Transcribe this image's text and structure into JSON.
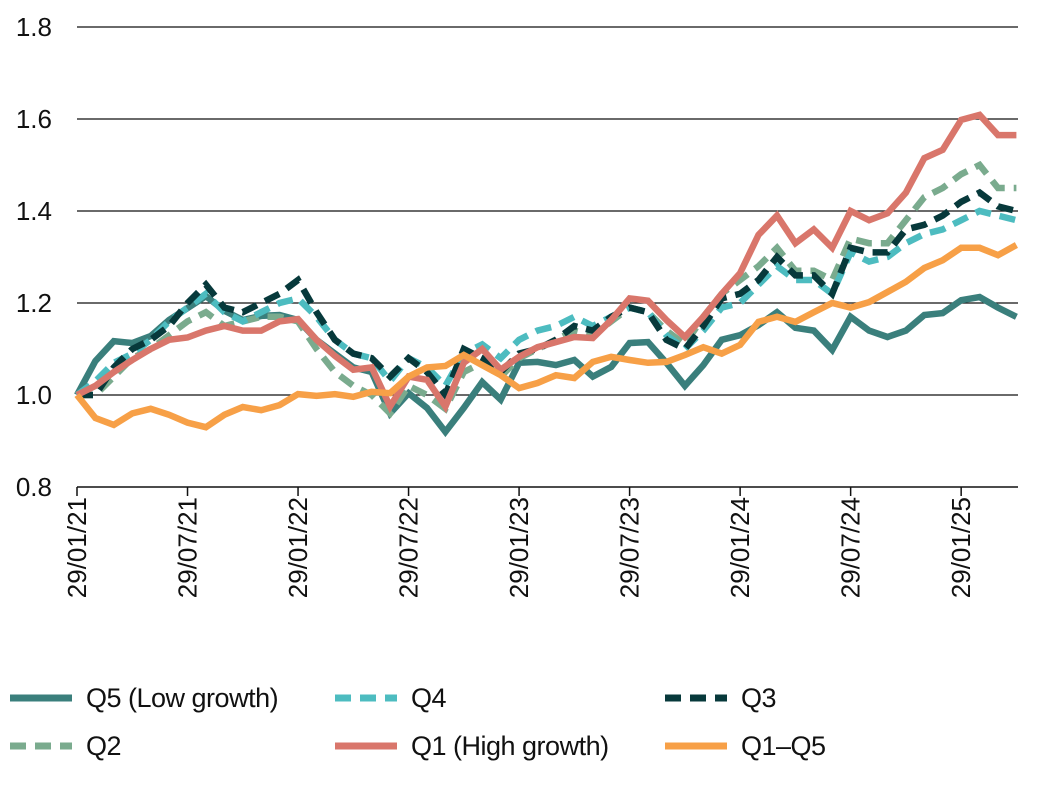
{
  "chart_data": {
    "type": "line",
    "title": "",
    "xlabel": "",
    "ylabel": "",
    "ylim": [
      0.8,
      1.8
    ],
    "yticks": [
      "0.8",
      "1.0",
      "1.2",
      "1.4",
      "1.6",
      "1.8"
    ],
    "grid": "horizontal",
    "legend_position": "bottom",
    "xticks": [
      "29/01/21",
      "29/07/21",
      "29/01/22",
      "29/07/22",
      "29/01/23",
      "29/07/23",
      "29/01/24",
      "29/07/24",
      "29/01/25"
    ],
    "x": [
      "2021-01",
      "2021-02",
      "2021-03",
      "2021-04",
      "2021-05",
      "2021-06",
      "2021-07",
      "2021-08",
      "2021-09",
      "2021-10",
      "2021-11",
      "2021-12",
      "2022-01",
      "2022-02",
      "2022-03",
      "2022-04",
      "2022-05",
      "2022-06",
      "2022-07",
      "2022-08",
      "2022-09",
      "2022-10",
      "2022-11",
      "2022-12",
      "2023-01",
      "2023-02",
      "2023-03",
      "2023-04",
      "2023-05",
      "2023-06",
      "2023-07",
      "2023-08",
      "2023-09",
      "2023-10",
      "2023-11",
      "2023-12",
      "2024-01",
      "2024-02",
      "2024-03",
      "2024-04",
      "2024-05",
      "2024-06",
      "2024-07",
      "2024-08",
      "2024-09",
      "2024-10",
      "2024-11",
      "2024-12",
      "2025-01",
      "2025-02",
      "2025-03",
      "2025-04"
    ],
    "series": [
      {
        "name": "Q5 (Low growth)",
        "color": "#3a7f7c",
        "style": "solid",
        "values": [
          1.0,
          1.074,
          1.117,
          1.113,
          1.128,
          1.163,
          1.189,
          1.215,
          1.183,
          1.163,
          1.172,
          1.174,
          1.163,
          1.12,
          1.09,
          1.06,
          1.05,
          0.96,
          1.004,
          0.972,
          0.92,
          0.972,
          1.028,
          0.99,
          1.07,
          1.072,
          1.065,
          1.076,
          1.04,
          1.061,
          1.113,
          1.115,
          1.07,
          1.02,
          1.065,
          1.12,
          1.13,
          1.152,
          1.18,
          1.146,
          1.14,
          1.098,
          1.17,
          1.14,
          1.126,
          1.14,
          1.174,
          1.178,
          1.206,
          1.213,
          1.19,
          1.17
        ]
      },
      {
        "name": "Q2",
        "color": "#7aab8e",
        "style": "dashed",
        "values": [
          1.0,
          1.0,
          1.04,
          1.08,
          1.1,
          1.13,
          1.16,
          1.18,
          1.15,
          1.16,
          1.17,
          1.17,
          1.16,
          1.1,
          1.05,
          1.02,
          1.0,
          0.96,
          1.02,
          1.0,
          0.97,
          1.05,
          1.07,
          1.04,
          1.08,
          1.1,
          1.12,
          1.14,
          1.13,
          1.16,
          1.19,
          1.18,
          1.14,
          1.11,
          1.17,
          1.22,
          1.25,
          1.28,
          1.32,
          1.27,
          1.27,
          1.25,
          1.34,
          1.33,
          1.33,
          1.38,
          1.43,
          1.45,
          1.48,
          1.5,
          1.45,
          1.45
        ]
      },
      {
        "name": "Q4",
        "color": "#4dbcc0",
        "style": "dashed",
        "values": [
          1.0,
          1.03,
          1.07,
          1.09,
          1.12,
          1.16,
          1.19,
          1.22,
          1.18,
          1.16,
          1.18,
          1.2,
          1.21,
          1.17,
          1.12,
          1.09,
          1.08,
          1.03,
          1.08,
          1.06,
          1.02,
          1.09,
          1.11,
          1.08,
          1.12,
          1.14,
          1.15,
          1.17,
          1.15,
          1.17,
          1.19,
          1.18,
          1.13,
          1.1,
          1.14,
          1.19,
          1.2,
          1.24,
          1.28,
          1.25,
          1.25,
          1.22,
          1.31,
          1.29,
          1.3,
          1.33,
          1.35,
          1.36,
          1.38,
          1.4,
          1.39,
          1.38
        ]
      },
      {
        "name": "Q3",
        "color": "#07393b",
        "style": "dashed",
        "values": [
          1.0,
          1.0,
          1.06,
          1.1,
          1.12,
          1.15,
          1.2,
          1.24,
          1.19,
          1.18,
          1.2,
          1.22,
          1.25,
          1.18,
          1.12,
          1.09,
          1.08,
          1.04,
          1.08,
          1.05,
          1.0,
          1.1,
          1.08,
          1.05,
          1.09,
          1.1,
          1.12,
          1.15,
          1.14,
          1.17,
          1.19,
          1.18,
          1.12,
          1.1,
          1.15,
          1.21,
          1.22,
          1.25,
          1.3,
          1.26,
          1.26,
          1.22,
          1.32,
          1.31,
          1.31,
          1.36,
          1.37,
          1.39,
          1.42,
          1.44,
          1.41,
          1.4
        ]
      },
      {
        "name": "Q1 (High growth)",
        "color": "#d9766b",
        "style": "solid",
        "values": [
          1.0,
          1.02,
          1.05,
          1.076,
          1.1,
          1.12,
          1.125,
          1.14,
          1.15,
          1.14,
          1.14,
          1.16,
          1.165,
          1.12,
          1.085,
          1.055,
          1.06,
          0.975,
          1.04,
          1.033,
          0.975,
          1.07,
          1.1,
          1.055,
          1.083,
          1.104,
          1.115,
          1.126,
          1.124,
          1.163,
          1.21,
          1.205,
          1.163,
          1.126,
          1.17,
          1.22,
          1.265,
          1.348,
          1.39,
          1.33,
          1.36,
          1.32,
          1.4,
          1.38,
          1.395,
          1.44,
          1.515,
          1.533,
          1.598,
          1.609,
          1.565,
          1.565
        ]
      },
      {
        "name": "Q1–Q5",
        "color": "#f7a047",
        "style": "solid",
        "values": [
          1.0,
          0.95,
          0.935,
          0.96,
          0.97,
          0.957,
          0.94,
          0.93,
          0.957,
          0.974,
          0.967,
          0.978,
          1.002,
          0.998,
          1.002,
          0.996,
          1.007,
          1.004,
          1.04,
          1.06,
          1.063,
          1.087,
          1.065,
          1.043,
          1.015,
          1.026,
          1.043,
          1.037,
          1.072,
          1.083,
          1.076,
          1.07,
          1.072,
          1.087,
          1.104,
          1.09,
          1.109,
          1.159,
          1.17,
          1.159,
          1.18,
          1.2,
          1.19,
          1.202,
          1.224,
          1.246,
          1.276,
          1.293,
          1.32,
          1.32,
          1.304,
          1.326
        ]
      }
    ]
  }
}
